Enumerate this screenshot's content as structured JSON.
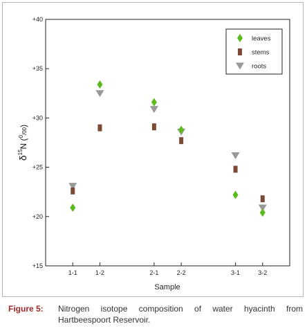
{
  "chart_data": {
    "type": "scatter",
    "categories": [
      "1-1",
      "1-2",
      "2-1",
      "2-2",
      "3-1",
      "3-2"
    ],
    "category_x": [
      1,
      2,
      4,
      5,
      7,
      8
    ],
    "xlim": [
      0,
      9
    ],
    "ylim": [
      15,
      40
    ],
    "yticks": [
      15,
      20,
      25,
      30,
      35,
      40
    ],
    "ytick_labels": [
      "+15",
      "+20",
      "+25",
      "+30",
      "+35",
      "+40"
    ],
    "xlabel": "Sample",
    "ylabel": {
      "main": "δ",
      "sup": "15",
      "unit": "N (",
      "unit_sup": "0",
      "unit_sub": "/00",
      "close": ")"
    },
    "legend_position": "top-right",
    "grid": false,
    "series": [
      {
        "name": "leaves",
        "marker": "diamond",
        "color": "#5cbb1c",
        "values": [
          20.9,
          33.4,
          31.6,
          28.8,
          22.2,
          20.4
        ]
      },
      {
        "name": "stems",
        "marker": "square",
        "color": "#7b4a35",
        "values": [
          22.6,
          29.0,
          29.1,
          27.7,
          24.8,
          21.8
        ]
      },
      {
        "name": "roots",
        "marker": "triangle-down",
        "color": "#999999",
        "values": [
          23.1,
          32.5,
          30.9,
          28.6,
          26.2,
          20.9
        ]
      }
    ]
  },
  "caption": {
    "label": "Figure 5:",
    "text": "Nitrogen isotope composition of water hyacinth from Hartbeespoort Reservoir."
  }
}
